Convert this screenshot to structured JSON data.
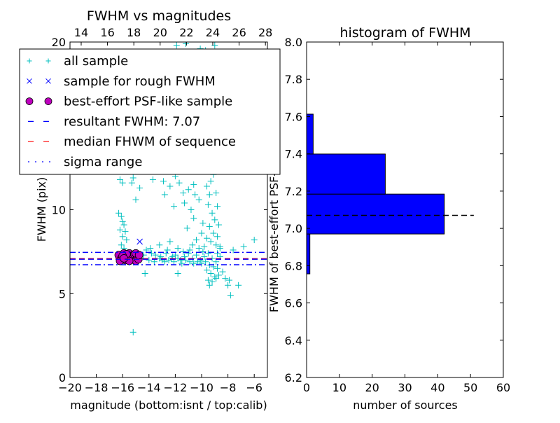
{
  "chart_data": [
    {
      "type": "scatter",
      "title": "FWHM vs magnitudes",
      "xlabel": "magnitude (bottom:isnt / top:calib)",
      "ylabel": "FWHM (pix)",
      "xlim": [
        -20,
        -5
      ],
      "ylim": [
        0,
        20
      ],
      "xticks": [
        -20,
        -18,
        -16,
        -14,
        -12,
        -10,
        -8,
        -6
      ],
      "xtick_labels": [
        "−20",
        "−18",
        "−16",
        "−14",
        "−12",
        "−10",
        "−8",
        "−6"
      ],
      "yticks": [
        0,
        5,
        10,
        15,
        20
      ],
      "ytick_labels": [
        "0",
        "5",
        "10",
        "15",
        "20"
      ],
      "top_axis": {
        "offset": 33.15,
        "ticks": [
          14,
          16,
          18,
          20,
          22,
          24,
          26,
          28
        ],
        "tick_labels": [
          "14",
          "16",
          "18",
          "20",
          "22",
          "24",
          "26",
          "28"
        ]
      },
      "grid": false,
      "legend": {
        "placement": "upper-left",
        "entries": [
          "all sample",
          "sample for rough FWHM",
          "best-effort PSF-like sample",
          "resultant FWHM: 7.07",
          "median FHWM of sequence",
          "sigma range"
        ]
      },
      "colors": {
        "all": "#00bfbf",
        "rough": "#0000ff",
        "psf": "#bf00bf",
        "resultant": "#0000ff",
        "median": "#ff0000",
        "sigma": "#0000ff"
      },
      "resultant_fwhm": 7.07,
      "median_fwhm": 7.07,
      "sigma_range": [
        6.72,
        7.46
      ],
      "series": {
        "all_sample": [
          [
            -16.3,
            9.8
          ],
          [
            -16.1,
            9.6
          ],
          [
            -16.0,
            9.3
          ],
          [
            -15.9,
            9.1
          ],
          [
            -16.2,
            8.8
          ],
          [
            -15.8,
            8.7
          ],
          [
            -16.0,
            8.4
          ],
          [
            -15.7,
            8.2
          ],
          [
            -16.1,
            7.9
          ],
          [
            -15.9,
            7.7
          ],
          [
            -16.2,
            11.8
          ],
          [
            -16.0,
            11.6
          ],
          [
            -15.2,
            11.9
          ],
          [
            -15.3,
            11.6
          ],
          [
            -15.0,
            10.6
          ],
          [
            -14.7,
            11.3
          ],
          [
            -13.7,
            11.8
          ],
          [
            -12.9,
            11.7
          ],
          [
            -12.4,
            11.4
          ],
          [
            -12.8,
            10.9
          ],
          [
            -11.7,
            11.6
          ],
          [
            -11.4,
            11.0
          ],
          [
            -11.0,
            11.2
          ],
          [
            -10.6,
            11.5
          ],
          [
            -12.1,
            10.2
          ],
          [
            -11.3,
            10.4
          ],
          [
            -10.5,
            10.9
          ],
          [
            -10.8,
            10.0
          ],
          [
            -10.2,
            10.6
          ],
          [
            -9.6,
            11.4
          ],
          [
            -10.3,
            12.4
          ],
          [
            -9.5,
            12.8
          ],
          [
            -9.7,
            13.6
          ],
          [
            -9.3,
            14.2
          ],
          [
            -9.8,
            15.1
          ],
          [
            -9.4,
            16.0
          ],
          [
            -9.6,
            17.2
          ],
          [
            -9.2,
            18.3
          ],
          [
            -10.1,
            19.6
          ],
          [
            -9.0,
            19.8
          ],
          [
            -11.2,
            19.9
          ],
          [
            -10.4,
            14.8
          ],
          [
            -11.6,
            13.2
          ],
          [
            -12.0,
            12.0
          ],
          [
            -9.1,
            12.1
          ],
          [
            -8.9,
            11.0
          ],
          [
            -8.8,
            10.2
          ],
          [
            -9.2,
            9.8
          ],
          [
            -9.0,
            9.4
          ],
          [
            -8.7,
            9.1
          ],
          [
            -9.4,
            9.0
          ],
          [
            -9.1,
            8.6
          ],
          [
            -8.8,
            8.4
          ],
          [
            -9.3,
            8.1
          ],
          [
            -8.9,
            7.9
          ],
          [
            -9.6,
            8.3
          ],
          [
            -10.0,
            8.6
          ],
          [
            -10.4,
            8.2
          ],
          [
            -9.8,
            7.8
          ],
          [
            -8.6,
            7.7
          ],
          [
            -9.5,
            10.3
          ],
          [
            -9.9,
            9.2
          ],
          [
            -10.6,
            9.5
          ],
          [
            -11.1,
            8.9
          ],
          [
            -8.7,
            13.1
          ],
          [
            -9.1,
            15.4
          ],
          [
            -9.3,
            11.7
          ],
          [
            -10.7,
            7.9
          ],
          [
            -12.4,
            8.1
          ],
          [
            -11.8,
            7.7
          ],
          [
            -14.2,
            7.6
          ],
          [
            -13.8,
            7.4
          ],
          [
            -13.5,
            7.3
          ],
          [
            -13.1,
            7.2
          ],
          [
            -12.7,
            7.4
          ],
          [
            -12.3,
            7.1
          ],
          [
            -12.0,
            7.3
          ],
          [
            -11.6,
            7.0
          ],
          [
            -11.3,
            7.2
          ],
          [
            -11.0,
            7.4
          ],
          [
            -10.7,
            7.1
          ],
          [
            -10.4,
            7.3
          ],
          [
            -10.1,
            7.0
          ],
          [
            -9.8,
            7.2
          ],
          [
            -9.5,
            7.4
          ],
          [
            -9.2,
            7.1
          ],
          [
            -8.9,
            6.9
          ],
          [
            -8.6,
            7.2
          ],
          [
            -14.6,
            7.1
          ],
          [
            -14.0,
            7.0
          ],
          [
            -13.6,
            6.9
          ],
          [
            -13.2,
            7.1
          ],
          [
            -12.8,
            6.9
          ],
          [
            -12.5,
            7.0
          ],
          [
            -12.1,
            6.9
          ],
          [
            -11.8,
            7.1
          ],
          [
            -11.5,
            6.8
          ],
          [
            -11.2,
            7.0
          ],
          [
            -10.9,
            6.9
          ],
          [
            -10.6,
            6.8
          ],
          [
            -10.3,
            6.9
          ],
          [
            -10.0,
            6.8
          ],
          [
            -9.7,
            6.9
          ],
          [
            -9.4,
            6.7
          ],
          [
            -9.1,
            6.6
          ],
          [
            -8.8,
            6.5
          ],
          [
            -9.6,
            6.4
          ],
          [
            -9.3,
            6.2
          ],
          [
            -9.0,
            6.0
          ],
          [
            -8.7,
            6.1
          ],
          [
            -9.5,
            5.8
          ],
          [
            -9.2,
            5.7
          ],
          [
            -8.9,
            5.9
          ],
          [
            -8.4,
            6.3
          ],
          [
            -8.2,
            5.9
          ],
          [
            -8.0,
            5.5
          ],
          [
            -7.9,
            5.8
          ],
          [
            -7.2,
            5.5
          ],
          [
            -7.8,
            4.9
          ],
          [
            -9.4,
            5.5
          ],
          [
            -8.6,
            7.8
          ],
          [
            -7.6,
            7.6
          ],
          [
            -6.8,
            7.8
          ],
          [
            -6.0,
            8.2
          ],
          [
            -14.3,
            6.2
          ],
          [
            -11.8,
            6.2
          ],
          [
            -15.2,
            2.7
          ],
          [
            -13.2,
            7.9
          ],
          [
            -13.9,
            7.7
          ],
          [
            -12.6,
            7.6
          ],
          [
            -10.9,
            7.6
          ],
          [
            -10.2,
            7.7
          ],
          [
            -9.9,
            7.5
          ],
          [
            -8.8,
            7.4
          ],
          [
            -11.4,
            7.5
          ],
          [
            -13.0,
            7.0
          ],
          [
            -12.2,
            7.2
          ],
          [
            -14.4,
            7.3
          ],
          [
            -15.0,
            7.2
          ],
          [
            -14.8,
            7.0
          ],
          [
            -11.9,
            19.8
          ],
          [
            -9.7,
            19.5
          ],
          [
            -9.1,
            18.9
          ],
          [
            -9.5,
            16.5
          ],
          [
            -8.9,
            14.6
          ],
          [
            -9.2,
            13.4
          ],
          [
            -9.7,
            12.3
          ],
          [
            -10.0,
            12.8
          ],
          [
            -8.8,
            12.4
          ],
          [
            -9.4,
            10.9
          ]
        ],
        "rough_sample": [
          [
            -14.7,
            8.1
          ]
        ],
        "psf_sample": [
          [
            -16.3,
            7.3
          ],
          [
            -16.1,
            7.1
          ],
          [
            -15.9,
            7.4
          ],
          [
            -15.8,
            7.0
          ],
          [
            -16.2,
            6.95
          ],
          [
            -15.6,
            7.2
          ],
          [
            -15.5,
            7.4
          ],
          [
            -15.4,
            7.0
          ],
          [
            -15.3,
            7.25
          ],
          [
            -15.2,
            7.1
          ],
          [
            -15.1,
            7.35
          ],
          [
            -15.0,
            6.95
          ],
          [
            -14.9,
            7.2
          ],
          [
            -14.8,
            7.05
          ],
          [
            -15.7,
            7.35
          ],
          [
            -16.0,
            7.25
          ],
          [
            -15.5,
            6.95
          ],
          [
            -15.0,
            7.4
          ],
          [
            -14.75,
            7.3
          ],
          [
            -15.9,
            7.1
          ]
        ]
      }
    },
    {
      "type": "bar",
      "orientation": "horizontal",
      "title": "histogram of FWHM",
      "xlabel": "number of sources",
      "ylabel": "FWHM of best-effort PSF-like sources",
      "xlim": [
        0,
        60
      ],
      "ylim": [
        6.2,
        8.0
      ],
      "xticks": [
        0,
        10,
        20,
        30,
        40,
        50,
        60
      ],
      "xtick_labels": [
        "0",
        "10",
        "20",
        "30",
        "40",
        "50",
        "60"
      ],
      "yticks": [
        6.2,
        6.4,
        6.6,
        6.8,
        7.0,
        7.2,
        7.4,
        7.6,
        7.8,
        8.0
      ],
      "ytick_labels": [
        "6.2",
        "6.4",
        "6.6",
        "6.8",
        "7.0",
        "7.2",
        "7.4",
        "7.6",
        "7.8",
        "8.0"
      ],
      "bin_edges": [
        6.756,
        6.97,
        7.184,
        7.399,
        7.613
      ],
      "counts": [
        1,
        42,
        24,
        2
      ],
      "bar_color": "#0000ff",
      "reference_line": {
        "value": 7.07,
        "extent": 51,
        "style": "dashed",
        "color": "#000000"
      }
    }
  ]
}
